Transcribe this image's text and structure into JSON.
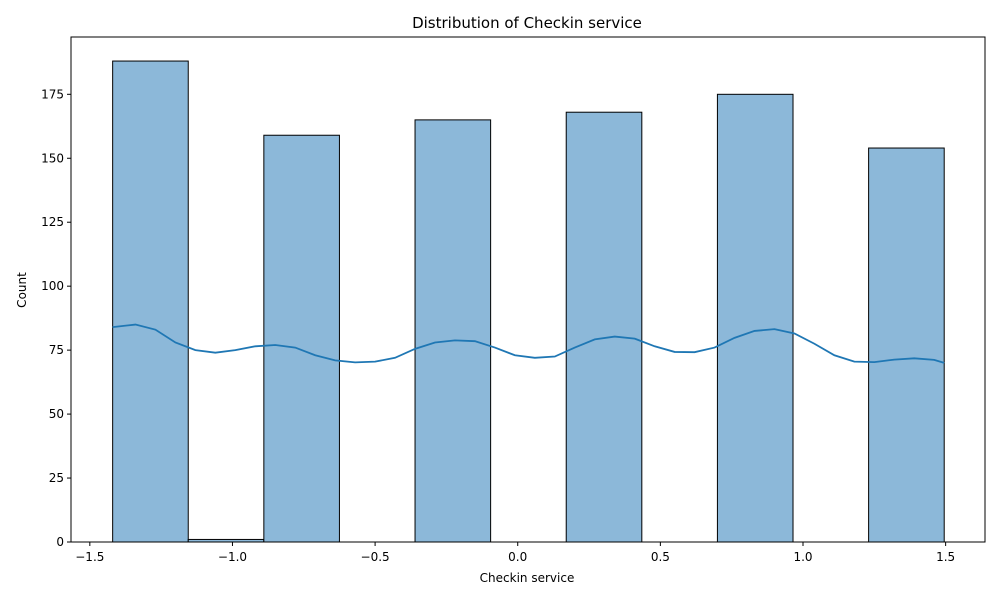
{
  "chart_data": {
    "type": "bar",
    "title": "Distribution of Checkin service",
    "xlabel": "Checkin service",
    "ylabel": "Count",
    "xlim": [
      -1.566,
      1.638
    ],
    "ylim": [
      0,
      197.4
    ],
    "xticks": [
      -1.5,
      -1.0,
      -0.5,
      0.0,
      0.5,
      1.0,
      1.5
    ],
    "xtick_labels": [
      "−1.5",
      "−1.0",
      "−0.5",
      "0.0",
      "0.5",
      "1.0",
      "1.5"
    ],
    "yticks": [
      0,
      25,
      50,
      75,
      100,
      125,
      150,
      175
    ],
    "ytick_labels": [
      "0",
      "25",
      "50",
      "75",
      "100",
      "125",
      "150",
      "175"
    ],
    "bins": [
      {
        "x0": -1.42,
        "x1": -1.155,
        "count": 188
      },
      {
        "x0": -1.155,
        "x1": -0.89,
        "count": 1
      },
      {
        "x0": -0.89,
        "x1": -0.625,
        "count": 159
      },
      {
        "x0": -0.625,
        "x1": -0.36,
        "count": 0
      },
      {
        "x0": -0.36,
        "x1": -0.095,
        "count": 165
      },
      {
        "x0": -0.095,
        "x1": 0.17,
        "count": 0
      },
      {
        "x0": 0.17,
        "x1": 0.435,
        "count": 168
      },
      {
        "x0": 0.435,
        "x1": 0.7,
        "count": 0
      },
      {
        "x0": 0.7,
        "x1": 0.965,
        "count": 175
      },
      {
        "x0": 0.965,
        "x1": 1.23,
        "count": 0
      },
      {
        "x0": 1.23,
        "x1": 1.495,
        "count": 154
      }
    ],
    "kde": {
      "x": [
        -1.42,
        -1.34,
        -1.27,
        -1.2,
        -1.13,
        -1.06,
        -0.99,
        -0.92,
        -0.85,
        -0.78,
        -0.71,
        -0.64,
        -0.57,
        -0.5,
        -0.43,
        -0.36,
        -0.29,
        -0.22,
        -0.15,
        -0.08,
        -0.01,
        0.06,
        0.13,
        0.2,
        0.27,
        0.34,
        0.41,
        0.48,
        0.55,
        0.62,
        0.69,
        0.76,
        0.83,
        0.9,
        0.97,
        1.04,
        1.11,
        1.18,
        1.25,
        1.32,
        1.39,
        1.46,
        1.495
      ],
      "y": [
        84,
        85,
        83,
        78,
        75,
        74,
        75,
        76.5,
        77,
        76,
        73,
        71,
        70.2,
        70.5,
        72,
        75.5,
        78,
        78.8,
        78.5,
        76,
        73,
        72,
        72.5,
        76,
        79.2,
        80.3,
        79.5,
        76.5,
        74.3,
        74.2,
        76,
        79.8,
        82.5,
        83.2,
        81.5,
        77.5,
        73,
        70.5,
        70.3,
        71.3,
        71.8,
        71.2,
        70
      ]
    },
    "colors": {
      "bar_fill": "#8cb8d9",
      "bar_edge": "#000000",
      "kde_line": "#1f77b4"
    },
    "grid": false,
    "legend": "none"
  }
}
